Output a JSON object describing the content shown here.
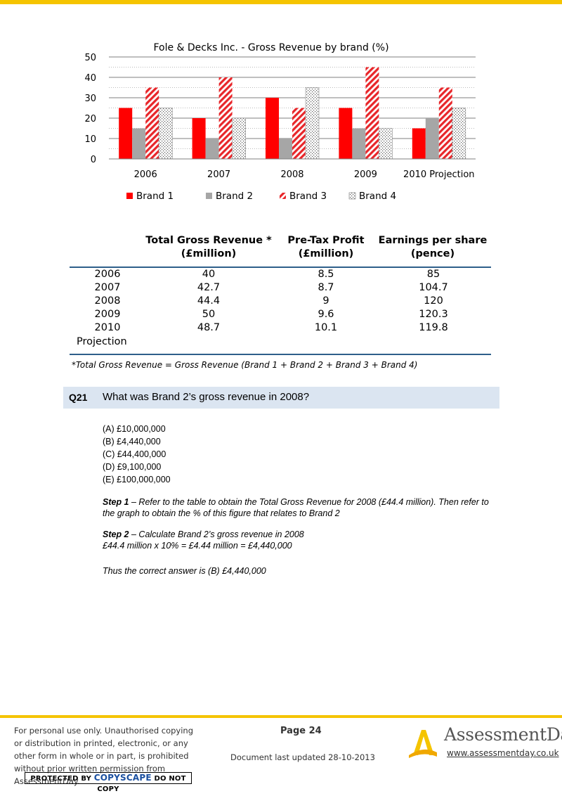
{
  "chart_data": {
    "type": "bar",
    "title": "Fole & Decks Inc. - Gross Revenue by brand (%)",
    "categories": [
      "2006",
      "2007",
      "2008",
      "2009",
      "2010 Projection"
    ],
    "series": [
      {
        "name": "Brand 1",
        "values": [
          25,
          20,
          30,
          25,
          15
        ],
        "color": "#ff0000",
        "pattern": "solid"
      },
      {
        "name": "Brand 2",
        "values": [
          15,
          10,
          10,
          15,
          20
        ],
        "color": "#a6a6a6",
        "pattern": "solid"
      },
      {
        "name": "Brand 3",
        "values": [
          35,
          40,
          25,
          45,
          35
        ],
        "color": "#e8262a",
        "pattern": "diagonal-stripes"
      },
      {
        "name": "Brand 4",
        "values": [
          25,
          20,
          35,
          15,
          25
        ],
        "color": "#7f7f7f",
        "pattern": "dotted"
      }
    ],
    "yticks": [
      "0",
      "10",
      "20",
      "30",
      "40",
      "50"
    ],
    "ylim": [
      0,
      50
    ],
    "grid": true,
    "legend": "bottom"
  },
  "table": {
    "headers": [
      [
        "Total Gross Revenue *",
        "(£million)"
      ],
      [
        "Pre-Tax Profit",
        "(£million)"
      ],
      [
        "Earnings per share",
        "(pence)"
      ]
    ],
    "rows": [
      {
        "year": "2006",
        "revenue": "40",
        "profit": "8.5",
        "eps": "85"
      },
      {
        "year": "2007",
        "revenue": "42.7",
        "profit": "8.7",
        "eps": "104.7"
      },
      {
        "year": "2008",
        "revenue": "44.4",
        "profit": "9",
        "eps": "120"
      },
      {
        "year": "2009",
        "revenue": "50",
        "profit": "9.6",
        "eps": "120.3"
      },
      {
        "year": "2010",
        "revenue": "48.7",
        "profit": "10.1",
        "eps": "119.8"
      }
    ],
    "projection_label": "Projection",
    "footnote": "*Total Gross Revenue = Gross Revenue (Brand 1 + Brand 2 + Brand 3 + Brand 4)"
  },
  "question": {
    "number": "Q21",
    "text": "What was Brand 2’s gross revenue in 2008?",
    "options": [
      "(A) £10,000,000",
      "(B) £4,440,000",
      "(C) £44,400,000",
      "(D) £9,100,000",
      "(E) £100,000,000"
    ]
  },
  "solution": {
    "step1_label": "Step 1",
    "step1_text": " – Refer to the table to obtain the Total Gross Revenue for 2008 (£44.4 million). Then refer to the graph to obtain the % of this figure that relates to Brand 2",
    "step2_label": "Step 2",
    "step2_text": " – Calculate Brand 2’s gross revenue in 2008",
    "step2_calc": "£44.4 million x 10% = £4.44 million = £4,440,000",
    "conclusion": "Thus the correct answer is (B) £4,440,000"
  },
  "footer": {
    "notice": "For personal use only. Unauthorised copying or distribution in printed, electronic, or any other form in whole or in part, is prohibited without prior written permission from AssessmentDay.",
    "copyscape_pre": "PROTECTED BY ",
    "copyscape_brand": "COPYSCAPE",
    "copyscape_post": " DO NOT COPY",
    "page": "Page 24",
    "updated": "Document last updated 28-10-2013",
    "brand": "AssessmentDay",
    "url": "www.assessmentday.co.uk"
  }
}
